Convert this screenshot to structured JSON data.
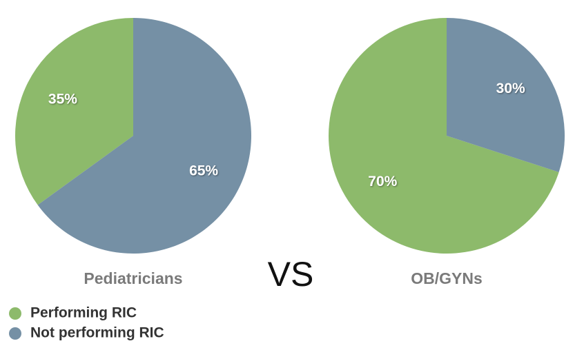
{
  "chart_data": [
    {
      "type": "pie",
      "title": "Pediatricians",
      "categories": [
        "Performing RIC",
        "Not performing RIC"
      ],
      "values": [
        35,
        65
      ],
      "value_labels": [
        "35%",
        "65%"
      ],
      "colors": [
        "#8dba6b",
        "#7590a5"
      ]
    },
    {
      "type": "pie",
      "title": "OB/GYNs",
      "categories": [
        "Performing RIC",
        "Not performing RIC"
      ],
      "values": [
        70,
        30
      ],
      "value_labels": [
        "70%",
        "30%"
      ],
      "colors": [
        "#8dba6b",
        "#7590a5"
      ]
    }
  ],
  "separator": "VS"
}
